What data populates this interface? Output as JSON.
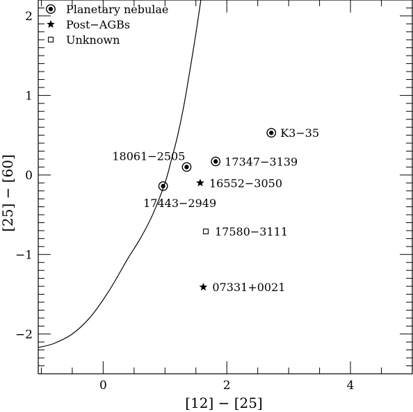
{
  "chart_data": {
    "type": "scatter",
    "title": "",
    "xlabel": "[12] − [25]",
    "ylabel": "[25] − [60]",
    "xlim": [
      -1.05,
      5.0
    ],
    "ylim": [
      -2.5,
      2.2
    ],
    "x_major_ticks": [
      0,
      2,
      4
    ],
    "y_major_ticks": [
      -2,
      -1,
      0,
      1,
      2
    ],
    "x_minor_step": 0.5,
    "y_minor_step": 0.1,
    "grid": false,
    "legend": {
      "placement": "top-left",
      "entries": [
        {
          "label": "Planetary nebulae",
          "marker": "circled-dot"
        },
        {
          "label": "Post−AGBs",
          "marker": "star"
        },
        {
          "label": "Unknown",
          "marker": "open-square"
        }
      ]
    },
    "series": [
      {
        "name": "Planetary nebulae",
        "marker": "circled-dot",
        "points": [
          {
            "x": 2.72,
            "y": 0.53,
            "label": "K3−35",
            "label_pos": "right"
          },
          {
            "x": 1.35,
            "y": 0.1,
            "label": "18061−2505",
            "label_pos": "above-left"
          },
          {
            "x": 1.82,
            "y": 0.17,
            "label": "17347−3139",
            "label_pos": "right"
          },
          {
            "x": 0.97,
            "y": -0.14,
            "label": "17443−2949",
            "label_pos": "below"
          }
        ]
      },
      {
        "name": "Post−AGBs",
        "marker": "star",
        "points": [
          {
            "x": 1.57,
            "y": -0.1,
            "label": "16552−3050",
            "label_pos": "right"
          },
          {
            "x": 1.62,
            "y": -1.41,
            "label": "07331+0021",
            "label_pos": "right"
          }
        ]
      },
      {
        "name": "Unknown",
        "marker": "open-square",
        "points": [
          {
            "x": 1.66,
            "y": -0.71,
            "label": "17580−3111",
            "label_pos": "right"
          }
        ]
      }
    ],
    "curve": {
      "description": "",
      "points": [
        [
          -1.05,
          -2.17
        ],
        [
          -0.8,
          -2.12
        ],
        [
          -0.5,
          -2.0
        ],
        [
          -0.2,
          -1.78
        ],
        [
          0.1,
          -1.45
        ],
        [
          0.4,
          -1.05
        ],
        [
          0.6,
          -0.8
        ],
        [
          0.8,
          -0.5
        ],
        [
          1.0,
          -0.1
        ],
        [
          1.1,
          0.18
        ],
        [
          1.2,
          0.48
        ],
        [
          1.3,
          0.85
        ],
        [
          1.4,
          1.3
        ],
        [
          1.5,
          1.78
        ],
        [
          1.58,
          2.2
        ]
      ]
    }
  }
}
